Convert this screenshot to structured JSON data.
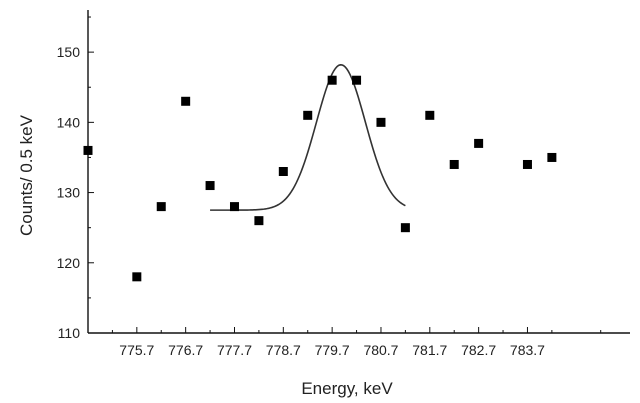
{
  "chart_data": {
    "type": "scatter",
    "xlabel": "Energy,  keV",
    "ylabel": "Counts/ 0.5 keV",
    "xlim": [
      774.7,
      785.8
    ],
    "ylim": [
      110,
      156
    ],
    "x_ticks": [
      775.7,
      776.7,
      777.7,
      778.7,
      779.7,
      780.7,
      781.7,
      782.7,
      783.7
    ],
    "x_tick_labels": [
      "775.7",
      "776.7",
      "777.7",
      "778.7",
      "779.7",
      "780.7",
      "781.7",
      "782.7",
      "783.7"
    ],
    "y_ticks": [
      110,
      120,
      130,
      140,
      150
    ],
    "y_tick_labels": [
      "110",
      "120",
      "130",
      "140",
      "150"
    ],
    "grid": false,
    "series": [
      {
        "kind": "points",
        "marker": "square",
        "color": "#000000",
        "x": [
          774.7,
          775.7,
          776.2,
          776.7,
          777.2,
          777.7,
          778.2,
          778.7,
          779.2,
          779.7,
          780.2,
          780.7,
          781.2,
          781.7,
          782.2,
          782.7,
          783.7,
          784.2
        ],
        "y": [
          136,
          118,
          128,
          143,
          131,
          128,
          126,
          133,
          141,
          146,
          146,
          140,
          125,
          141,
          134,
          137,
          134,
          135
        ]
      },
      {
        "kind": "fit",
        "shape": "gaussian",
        "color": "#333333",
        "x_range": [
          777.2,
          781.2
        ],
        "baseline": 127.5,
        "amplitude": 20.7,
        "center": 779.88,
        "sigma": 0.5
      }
    ]
  }
}
